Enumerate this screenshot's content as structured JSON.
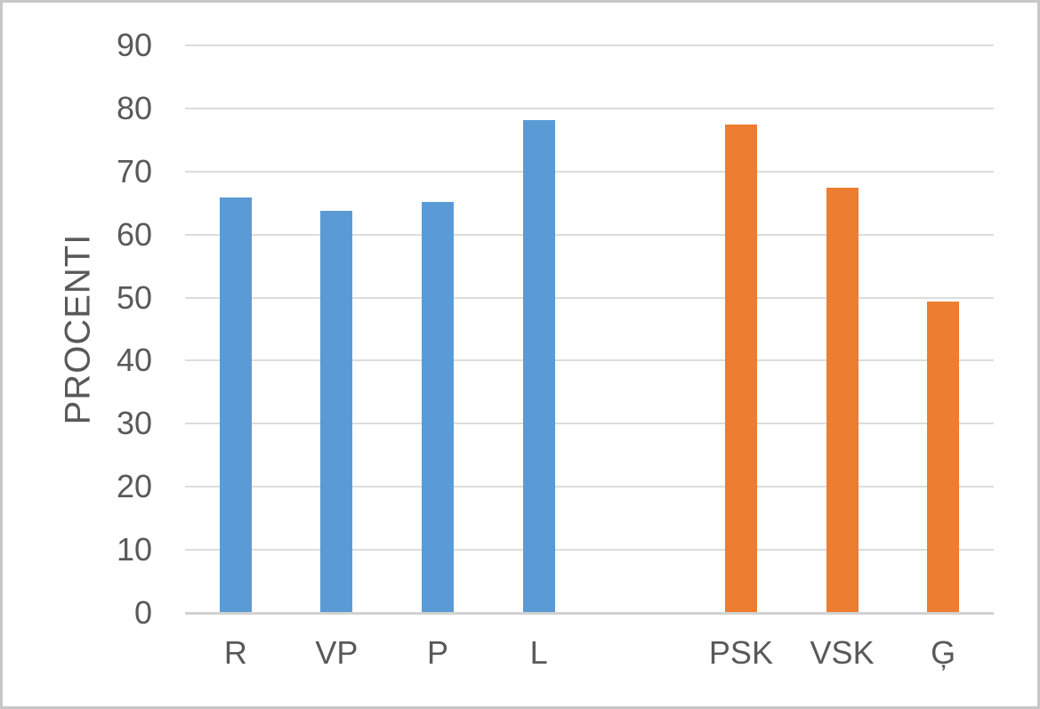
{
  "chart_data": {
    "type": "bar",
    "categories": [
      "R",
      "VP",
      "P",
      "L",
      "",
      "PSK",
      "VSK",
      "Ģ"
    ],
    "values": [
      65.9,
      63.8,
      65.2,
      78.2,
      null,
      77.4,
      67.4,
      49.4
    ],
    "point_colors": [
      "#5B9BD5",
      "#5B9BD5",
      "#5B9BD5",
      "#5B9BD5",
      "",
      "#ED7D31",
      "#ED7D31",
      "#ED7D31"
    ],
    "ylabel": "PROCENTI",
    "ylim": [
      0,
      90
    ],
    "yticks": [
      0,
      10,
      20,
      30,
      40,
      50,
      60,
      70,
      80,
      90
    ],
    "grid": true,
    "legend": false,
    "colors": {
      "blue_series": "#5B9BD5",
      "orange_series": "#ED7D31",
      "gridline": "#DCDCDC",
      "axis_line": "#D2D2D2",
      "text": "#595959",
      "frame_border": "#C7C7C7"
    }
  }
}
